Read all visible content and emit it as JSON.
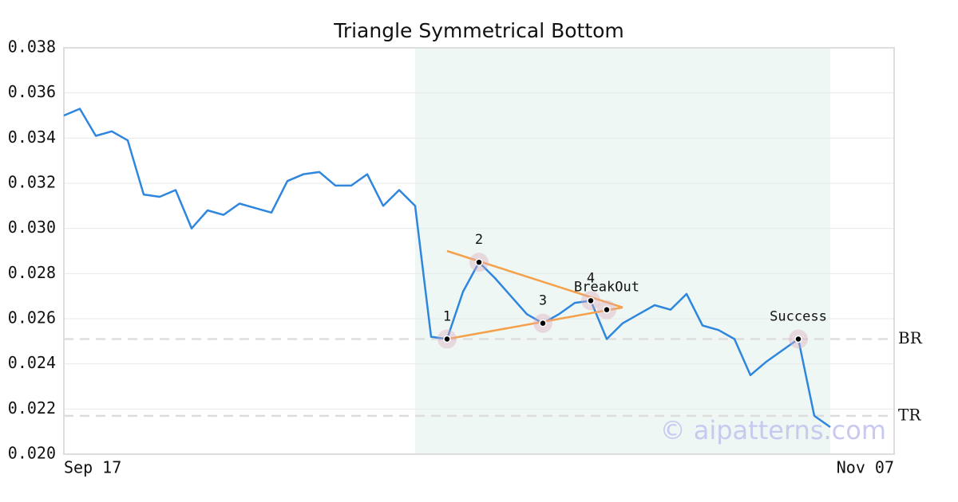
{
  "chart_data": {
    "type": "line",
    "title": "Triangle Symmetrical Bottom",
    "categories": [
      "Sep 17",
      null,
      null,
      null,
      null,
      null,
      null,
      null,
      null,
      null,
      null,
      null,
      null,
      null,
      null,
      null,
      null,
      null,
      null,
      null,
      null,
      null,
      null,
      null,
      null,
      null,
      null,
      null,
      null,
      null,
      null,
      null,
      null,
      null,
      null,
      null,
      null,
      null,
      null,
      null,
      null,
      null,
      null,
      null,
      null,
      null,
      null,
      null,
      null,
      null,
      null,
      null,
      "Nov 07"
    ],
    "series": [
      {
        "color": "#2e86de",
        "values": [
          0.035,
          0.0353,
          0.0341,
          0.0343,
          0.0339,
          0.0315,
          0.0314,
          0.0317,
          0.03,
          0.0308,
          0.0306,
          0.0311,
          0.0309,
          0.0307,
          0.0321,
          0.0324,
          0.0325,
          0.0319,
          0.0319,
          0.0324,
          0.031,
          0.0317,
          0.031,
          0.0252,
          0.0251,
          0.0272,
          0.0285,
          0.0278,
          0.027,
          0.0262,
          0.0258,
          0.0262,
          0.0267,
          0.0268,
          0.0251,
          0.0258,
          0.0262,
          0.0266,
          0.0264,
          0.0271,
          0.0257,
          0.0255,
          0.0251,
          0.0235,
          0.0241,
          0.0246,
          0.0251,
          0.0217,
          0.0212,
          null,
          null,
          null,
          null
        ]
      }
    ],
    "ylim": [
      0.02,
      0.038
    ],
    "yticks": [
      {
        "value": 0.02,
        "label": "0.020"
      },
      {
        "value": 0.022,
        "label": "0.022"
      },
      {
        "value": 0.024,
        "label": "0.024"
      },
      {
        "value": 0.026,
        "label": "0.026"
      },
      {
        "value": 0.028,
        "label": "0.028"
      },
      {
        "value": 0.03,
        "label": "0.030"
      },
      {
        "value": 0.032,
        "label": "0.032"
      },
      {
        "value": 0.034,
        "label": "0.034"
      },
      {
        "value": 0.036,
        "label": "0.036"
      },
      {
        "value": 0.038,
        "label": "0.038"
      }
    ],
    "grid": true,
    "levels": [
      {
        "label": "BR",
        "value": 0.0251
      },
      {
        "label": "TR",
        "value": 0.0217
      }
    ],
    "trendlines": [
      {
        "color": "#f5a04a",
        "x": [
          24,
          35
        ],
        "y": [
          0.029,
          0.0265
        ]
      },
      {
        "color": "#f5a04a",
        "x": [
          24,
          35
        ],
        "y": [
          0.0251,
          0.0265
        ]
      }
    ],
    "annotations": [
      {
        "label": "1",
        "x": 24,
        "y": 0.0251
      },
      {
        "label": "2",
        "x": 26,
        "y": 0.0285
      },
      {
        "label": "3",
        "x": 30,
        "y": 0.0258
      },
      {
        "label": "4",
        "x": 33,
        "y": 0.0268
      },
      {
        "label": "BreakOut",
        "x": 34,
        "y": 0.0264
      },
      {
        "label": "Success",
        "x": 46,
        "y": 0.0251
      }
    ],
    "watermark": "© aipatterns.com"
  }
}
